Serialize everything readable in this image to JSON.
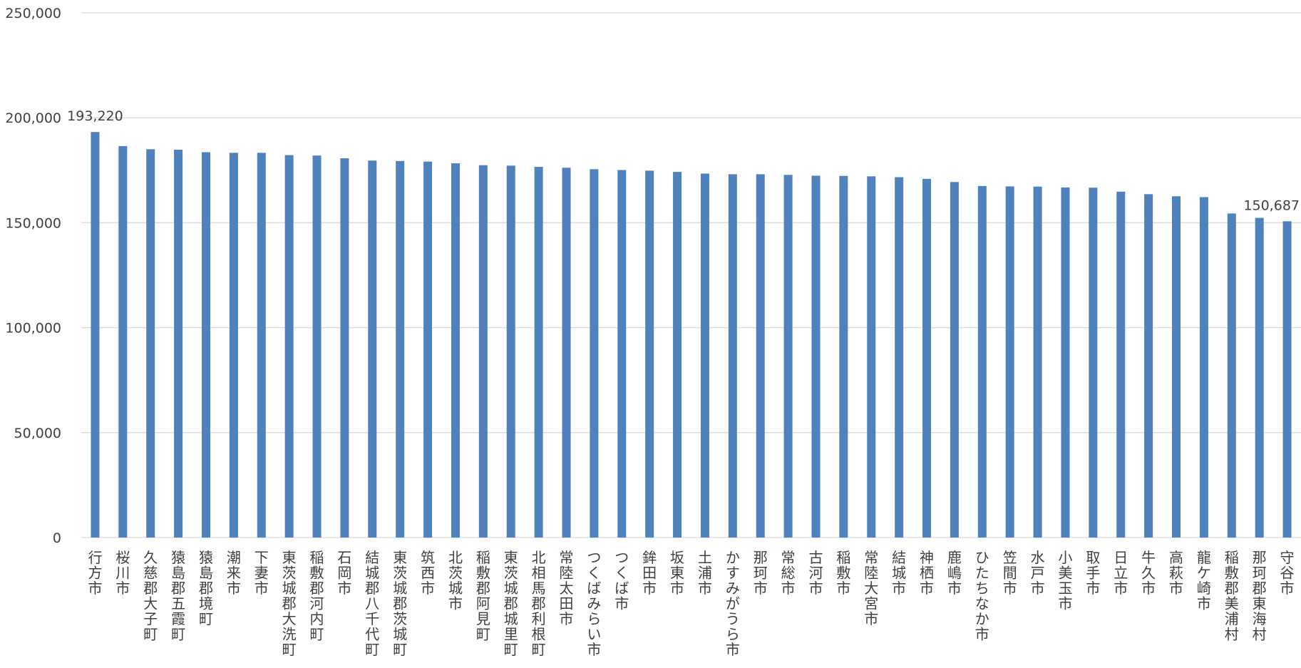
{
  "chart_data": {
    "type": "bar",
    "title": "",
    "xlabel": "",
    "ylabel": "",
    "ylim": [
      0,
      250000
    ],
    "yticks": [
      0,
      50000,
      100000,
      150000,
      200000,
      250000
    ],
    "ytick_labels": [
      "0",
      "50,000",
      "100,000",
      "150,000",
      "200,000",
      "250,000"
    ],
    "grid": true,
    "legend": "none",
    "bar_color": "#4f81bd",
    "categories": [
      "行方市",
      "桜川市",
      "久慈郡大子町",
      "猿島郡五霞町",
      "猿島郡境町",
      "潮来市",
      "下妻市",
      "東茨城郡大洗町",
      "稲敷郡河内町",
      "石岡市",
      "結城郡八千代町",
      "東茨城郡茨城町",
      "筑西市",
      "北茨城市",
      "稲敷郡阿見町",
      "東茨城郡城里町",
      "北相馬郡利根町",
      "常陸太田市",
      "つくばみらい市",
      "つくば市",
      "鉾田市",
      "坂東市",
      "土浦市",
      "かすみがうら市",
      "那珂市",
      "常総市",
      "古河市",
      "稲敷市",
      "常陸大宮市",
      "結城市",
      "神栖市",
      "鹿嶋市",
      "ひたちなか市",
      "笠間市",
      "水戸市",
      "小美玉市",
      "取手市",
      "日立市",
      "牛久市",
      "高萩市",
      "龍ケ崎市",
      "稲敷郡美浦村",
      "那珂郡東海村",
      "守谷市"
    ],
    "values": [
      193220,
      186500,
      185000,
      184800,
      183600,
      183300,
      183300,
      182200,
      182000,
      180700,
      179600,
      179400,
      179100,
      178300,
      177400,
      177200,
      176600,
      176200,
      175500,
      175100,
      174800,
      174200,
      173400,
      173100,
      173100,
      172800,
      172400,
      172300,
      172100,
      171700,
      170900,
      169400,
      167500,
      167300,
      167200,
      166800,
      166700,
      164800,
      163600,
      162600,
      162200,
      154400,
      152300,
      150687
    ],
    "data_labels": [
      {
        "index": 0,
        "text": "193,220"
      },
      {
        "index": 43,
        "text": "150,687"
      }
    ]
  }
}
